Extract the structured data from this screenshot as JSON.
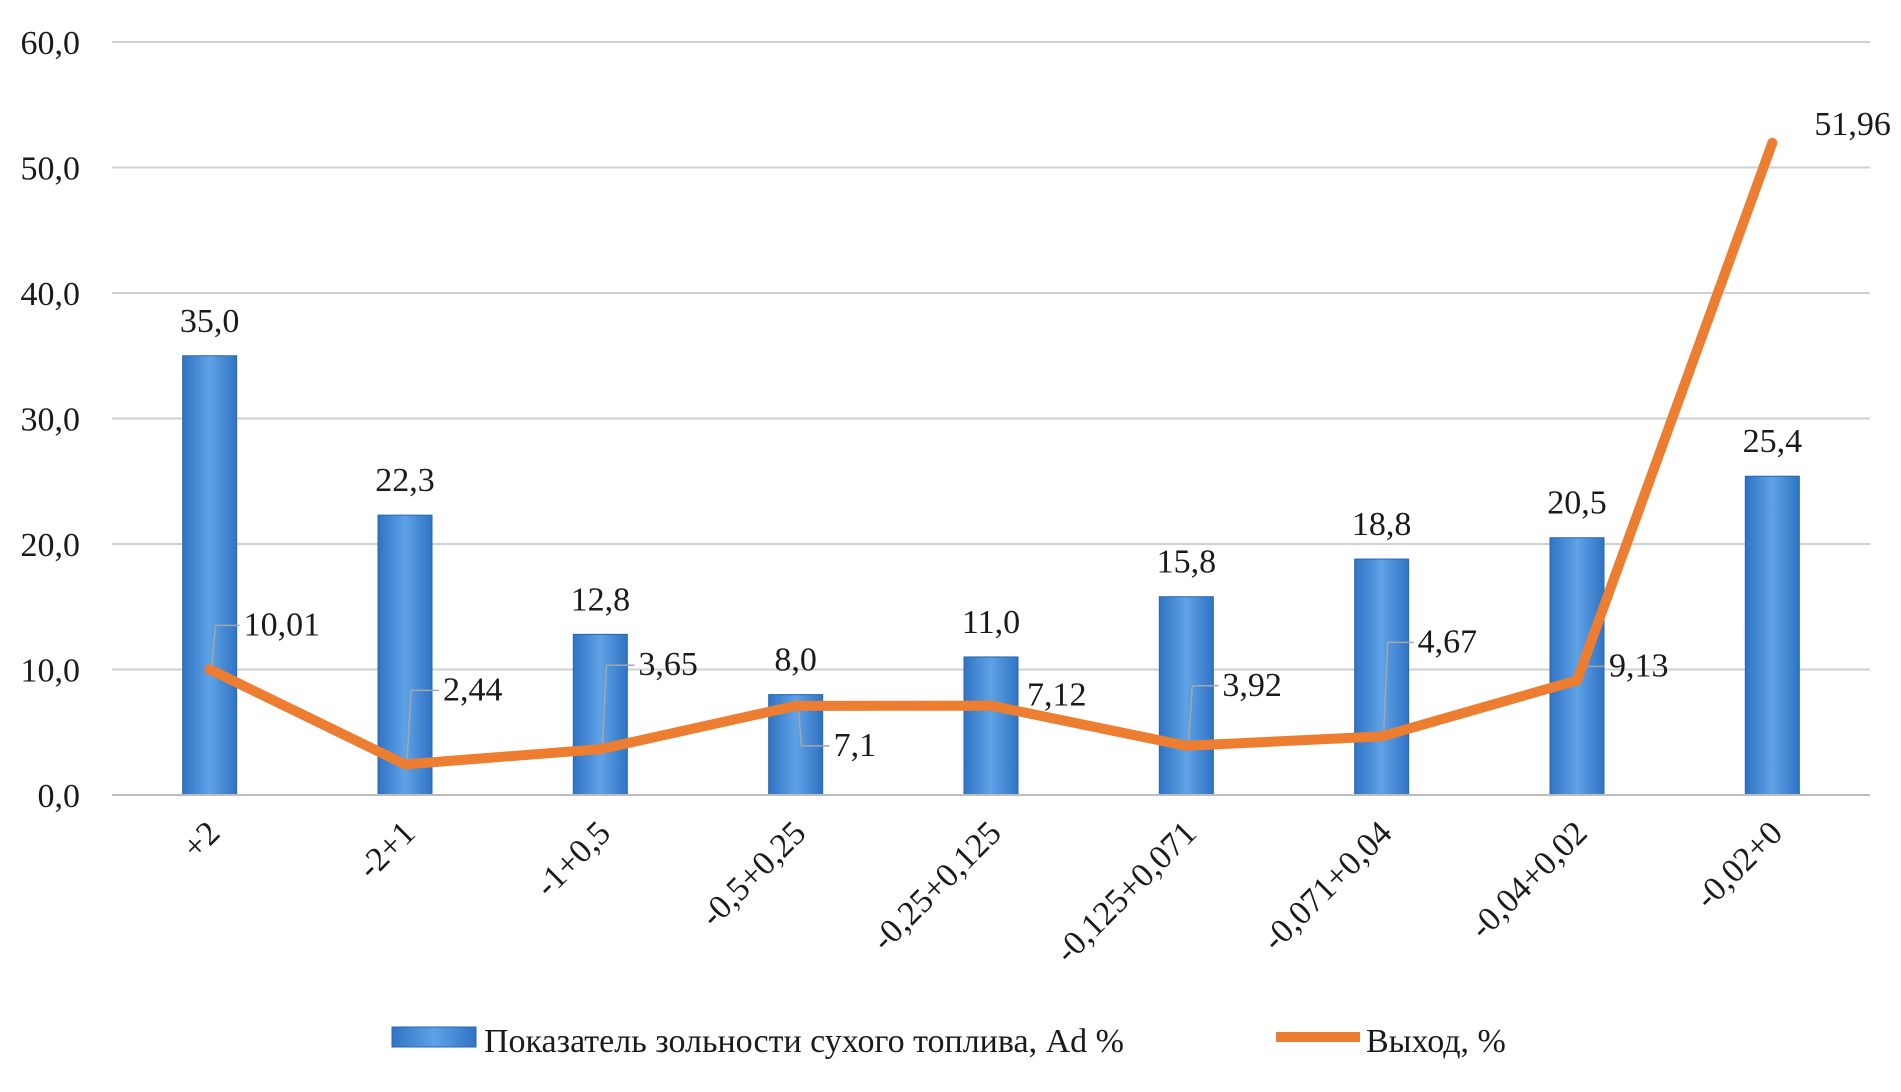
{
  "chart_data": {
    "type": "bar",
    "categories": [
      "+2",
      "-2+1",
      "-1+0,5",
      "-0,5+0,25",
      "-0,25+0,125",
      "-0,125+0,071",
      "-0,071+0,04",
      "-0,04+0,02",
      "-0,02+0"
    ],
    "series": [
      {
        "name": "Показатель зольности сухого топлива, Ad %",
        "type": "bar",
        "values": [
          35.0,
          22.3,
          12.8,
          8.0,
          11.0,
          15.8,
          18.8,
          20.5,
          25.4
        ],
        "labels": [
          "35,0",
          "22,3",
          "12,8",
          "8,0",
          "11,0",
          "15,8",
          "18,8",
          "20,5",
          "25,4"
        ],
        "color": "#3c86cf"
      },
      {
        "name": "Выход, %",
        "type": "line",
        "values": [
          10.01,
          2.44,
          3.65,
          7.1,
          7.12,
          3.92,
          4.67,
          9.13,
          51.96
        ],
        "labels": [
          "10,01",
          "2,44",
          "3,65",
          "7,1",
          "7,12",
          "3,92",
          "4,67",
          "9,13",
          "51,96"
        ],
        "color": "#ed7d31"
      }
    ],
    "ylim": [
      0,
      60
    ],
    "yticks": [
      0,
      10,
      20,
      30,
      40,
      50,
      60
    ],
    "ytick_labels": [
      "0,0",
      "10,0",
      "20,0",
      "30,0",
      "40,0",
      "50,0",
      "60,0"
    ],
    "grid": true,
    "legend": "bottom",
    "title": "",
    "xlabel": "",
    "ylabel": ""
  }
}
